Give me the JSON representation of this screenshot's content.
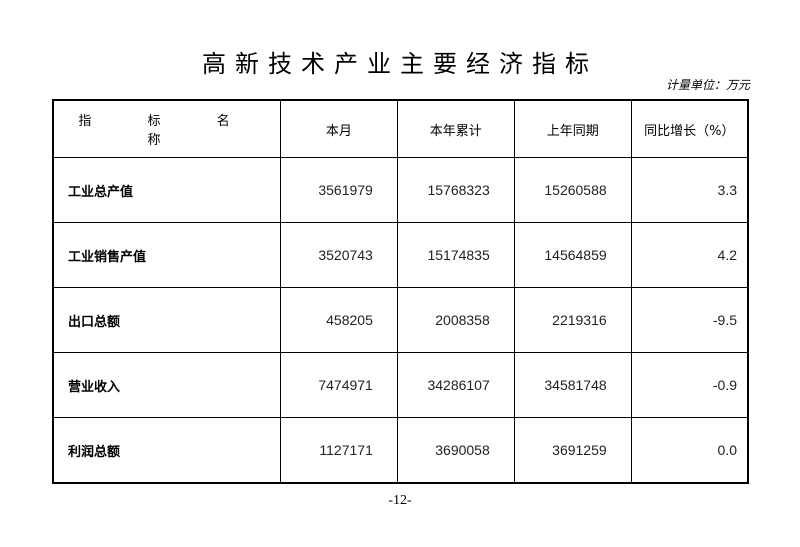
{
  "title": "高新技术产业主要经济指标",
  "unit": "计量单位：万元",
  "headers": [
    "指 标 名 称",
    "本月",
    "本年累计",
    "上年同期",
    "同比增长（%）"
  ],
  "rows": [
    {
      "name": "工业总产值",
      "month": "3561979",
      "ytd": "15768323",
      "prev": "15260588",
      "growth": "3.3"
    },
    {
      "name": "工业销售产值",
      "month": "3520743",
      "ytd": "15174835",
      "prev": "14564859",
      "growth": "4.2"
    },
    {
      "name": "出口总额",
      "month": "458205",
      "ytd": "2008358",
      "prev": "2219316",
      "growth": "-9.5"
    },
    {
      "name": "营业收入",
      "month": "7474971",
      "ytd": "34286107",
      "prev": "34581748",
      "growth": "-0.9"
    },
    {
      "name": "利润总额",
      "month": "1127171",
      "ytd": "3690058",
      "prev": "3691259",
      "growth": "0.0"
    }
  ],
  "page_number": "-12-"
}
